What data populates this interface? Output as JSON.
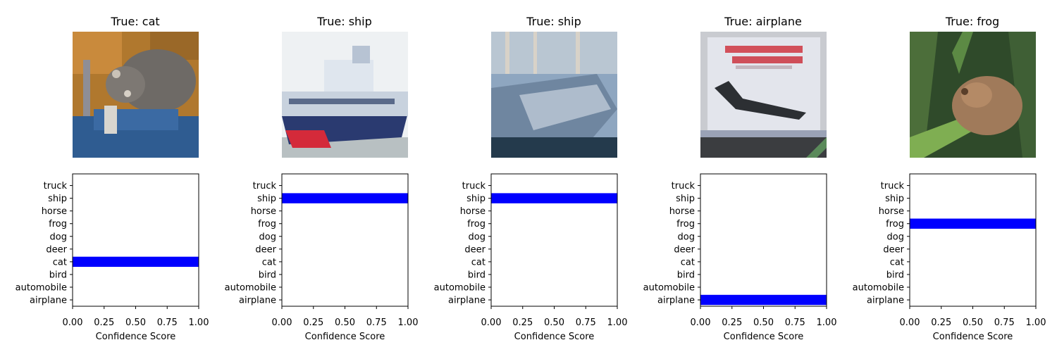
{
  "chart_data": [
    {
      "type": "bar",
      "orientation": "horizontal",
      "title": "True: cat",
      "image": "cat",
      "categories": [
        "airplane",
        "automobile",
        "bird",
        "cat",
        "deer",
        "dog",
        "frog",
        "horse",
        "ship",
        "truck"
      ],
      "values": [
        0,
        0,
        0,
        1.0,
        0,
        0,
        0,
        0,
        0,
        0
      ],
      "xlabel": "Confidence Score",
      "xlim": [
        0,
        1
      ],
      "xticks": [
        "0.00",
        "0.25",
        "0.50",
        "0.75",
        "1.00"
      ],
      "bar_color": "#0000ff"
    },
    {
      "type": "bar",
      "orientation": "horizontal",
      "title": "True: ship",
      "image": "ship",
      "categories": [
        "airplane",
        "automobile",
        "bird",
        "cat",
        "deer",
        "dog",
        "frog",
        "horse",
        "ship",
        "truck"
      ],
      "values": [
        0,
        0,
        0,
        0,
        0,
        0,
        0,
        0,
        1.0,
        0
      ],
      "xlabel": "Confidence Score",
      "xlim": [
        0,
        1
      ],
      "xticks": [
        "0.00",
        "0.25",
        "0.50",
        "0.75",
        "1.00"
      ],
      "bar_color": "#0000ff"
    },
    {
      "type": "bar",
      "orientation": "horizontal",
      "title": "True: ship",
      "image": "ship",
      "categories": [
        "airplane",
        "automobile",
        "bird",
        "cat",
        "deer",
        "dog",
        "frog",
        "horse",
        "ship",
        "truck"
      ],
      "values": [
        0,
        0,
        0,
        0,
        0,
        0,
        0,
        0,
        1.0,
        0
      ],
      "xlabel": "Confidence Score",
      "xlim": [
        0,
        1
      ],
      "xticks": [
        "0.00",
        "0.25",
        "0.50",
        "0.75",
        "1.00"
      ],
      "bar_color": "#0000ff"
    },
    {
      "type": "bar",
      "orientation": "horizontal",
      "title": "True: airplane",
      "image": "airplane",
      "categories": [
        "airplane",
        "automobile",
        "bird",
        "cat",
        "deer",
        "dog",
        "frog",
        "horse",
        "ship",
        "truck"
      ],
      "values": [
        1.0,
        0,
        0,
        0,
        0,
        0,
        0,
        0,
        0,
        0
      ],
      "xlabel": "Confidence Score",
      "xlim": [
        0,
        1
      ],
      "xticks": [
        "0.00",
        "0.25",
        "0.50",
        "0.75",
        "1.00"
      ],
      "bar_color": "#0000ff"
    },
    {
      "type": "bar",
      "orientation": "horizontal",
      "title": "True: frog",
      "image": "frog",
      "categories": [
        "airplane",
        "automobile",
        "bird",
        "cat",
        "deer",
        "dog",
        "frog",
        "horse",
        "ship",
        "truck"
      ],
      "values": [
        0,
        0,
        0,
        0,
        0,
        0,
        1.0,
        0,
        0,
        0
      ],
      "xlabel": "Confidence Score",
      "xlim": [
        0,
        1
      ],
      "xticks": [
        "0.00",
        "0.25",
        "0.50",
        "0.75",
        "1.00"
      ],
      "bar_color": "#0000ff"
    }
  ]
}
